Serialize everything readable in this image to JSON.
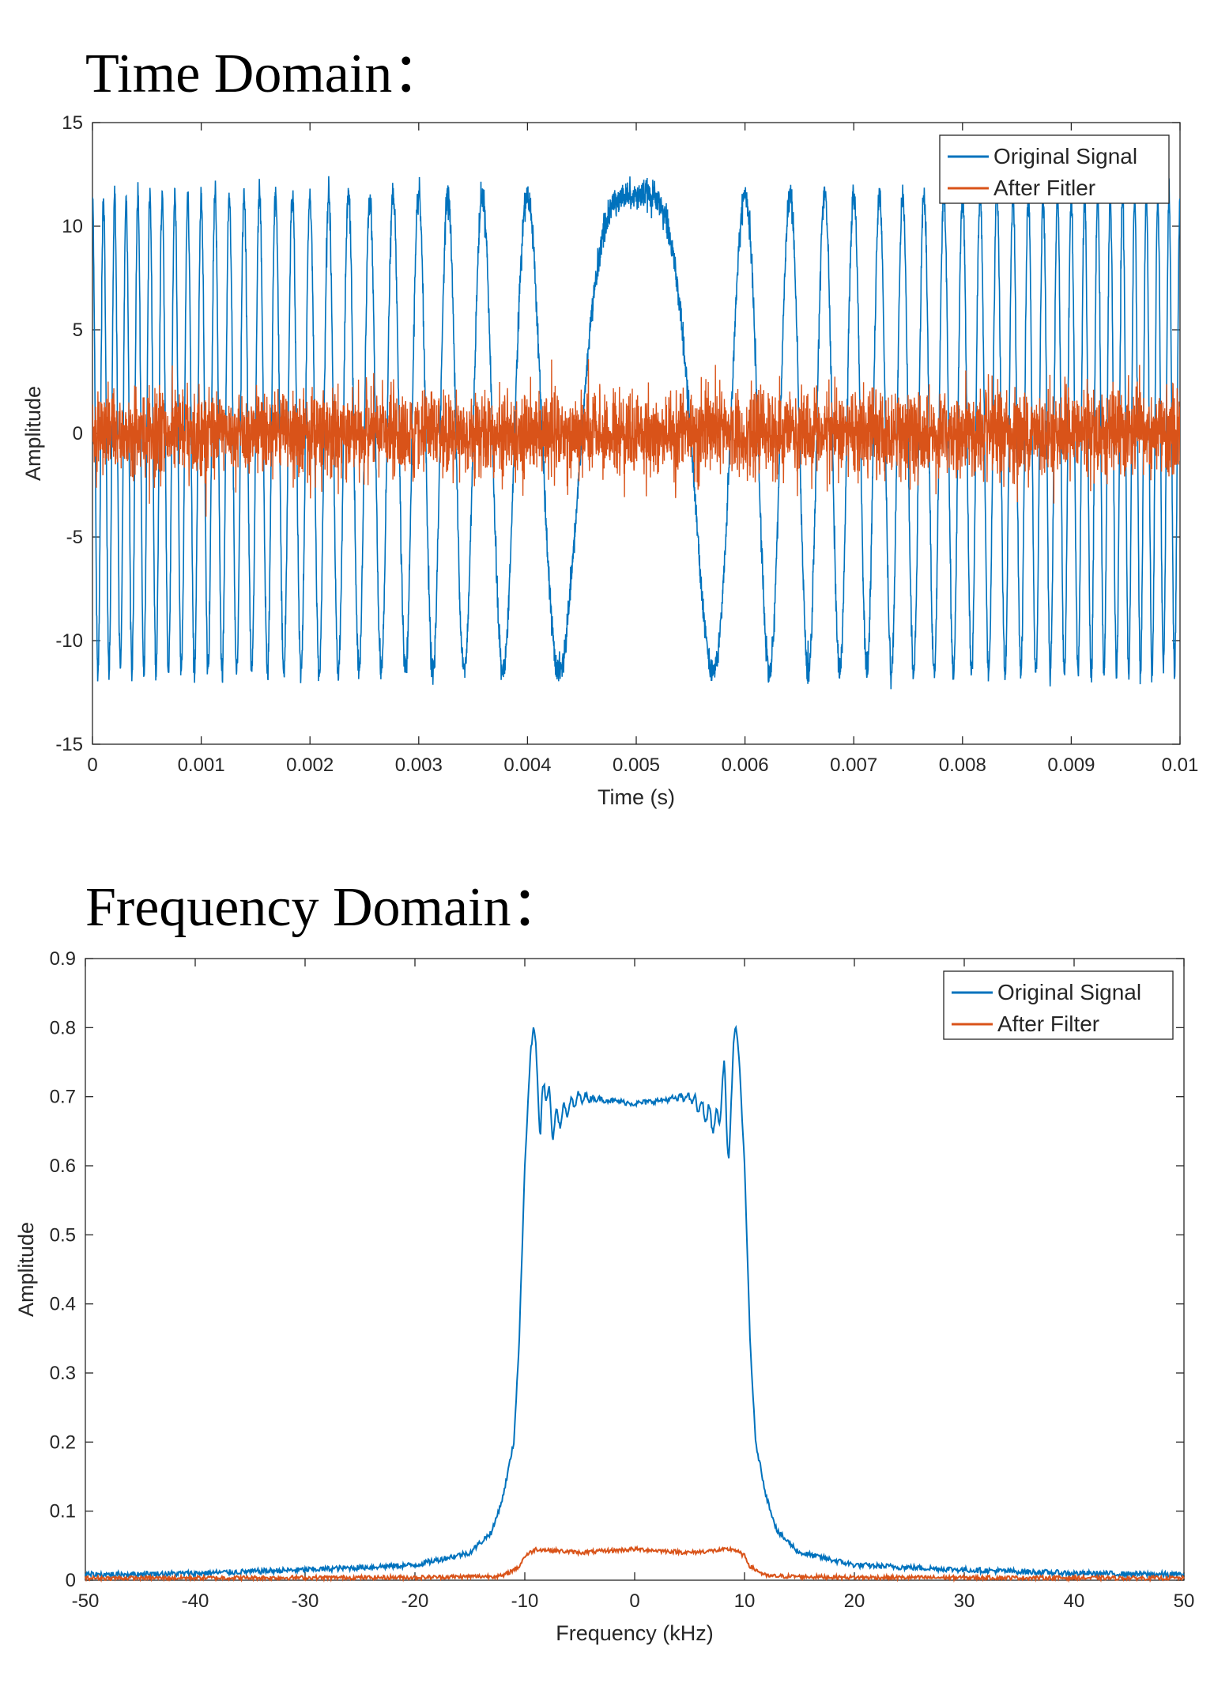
{
  "headings": {
    "time": "Time Domain：",
    "frequency": "Frequency Domain："
  },
  "colors": {
    "original": "#0072BD",
    "filtered": "#D95319",
    "axis": "#262626"
  },
  "chart_data": [
    {
      "type": "line",
      "title": "",
      "xlabel": "Time (s)",
      "ylabel": "Amplitude",
      "xlim": [
        0,
        0.01
      ],
      "ylim": [
        -15,
        15
      ],
      "xticks": [
        0,
        0.001,
        0.002,
        0.003,
        0.004,
        0.005,
        0.006,
        0.007,
        0.008,
        0.009,
        0.01
      ],
      "xticklabels": [
        "0",
        "0.001",
        "0.002",
        "0.003",
        "0.004",
        "0.005",
        "0.006",
        "0.007",
        "0.008",
        "0.009",
        "0.01"
      ],
      "yticks": [
        -15,
        -10,
        -5,
        0,
        5,
        10,
        15
      ],
      "yticklabels": [
        "-15",
        "-10",
        "-5",
        "0",
        "5",
        "10",
        "15"
      ],
      "grid": false,
      "legend_position": "top-right",
      "series": [
        {
          "name": "Original Signal",
          "color": "#0072BD",
          "description": "linear FM chirp, envelope about ±11.5, instantaneous frequency sweeping from about 10 kHz to 0 at t=0.005 s and back to 10 kHz, with noise",
          "amplitude": 11.5,
          "noise_std": 1.0,
          "t_center": 0.005,
          "freq_max_hz": 10000
        },
        {
          "name": "After Fitler",
          "color": "#D95319",
          "description": "filtered noise band centered at 0 with envelope about ±3",
          "noise_amplitude": 1.0
        }
      ]
    },
    {
      "type": "line",
      "title": "",
      "xlabel": "Frequency (kHz)",
      "ylabel": "Amplitude",
      "xlim": [
        -50,
        50
      ],
      "ylim": [
        0,
        0.9
      ],
      "xticks": [
        -50,
        -40,
        -30,
        -20,
        -10,
        0,
        10,
        20,
        30,
        40,
        50
      ],
      "xticklabels": [
        "-50",
        "-40",
        "-30",
        "-20",
        "-10",
        "0",
        "10",
        "20",
        "30",
        "40",
        "50"
      ],
      "yticks": [
        0,
        0.1,
        0.2,
        0.3,
        0.4,
        0.5,
        0.6,
        0.7,
        0.8,
        0.9
      ],
      "yticklabels": [
        "0",
        "0.1",
        "0.2",
        "0.3",
        "0.4",
        "0.5",
        "0.6",
        "0.7",
        "0.8",
        "0.9"
      ],
      "grid": false,
      "legend_position": "top-right",
      "series": [
        {
          "name": "Original Signal",
          "color": "#0072BD",
          "x": [
            -50,
            -40,
            -30,
            -20,
            -15,
            -13,
            -12,
            -11,
            -10.5,
            -10,
            -9.5,
            -9.2,
            -9,
            -8.6,
            -8.2,
            -7.5,
            -5,
            0,
            5,
            7.5,
            8.2,
            8.6,
            9,
            9.2,
            9.5,
            10,
            10.5,
            11,
            12,
            13,
            15,
            20,
            30,
            40,
            50
          ],
          "y": [
            0.008,
            0.01,
            0.015,
            0.022,
            0.04,
            0.07,
            0.12,
            0.2,
            0.35,
            0.6,
            0.76,
            0.8,
            0.78,
            0.63,
            0.73,
            0.66,
            0.7,
            0.69,
            0.7,
            0.66,
            0.73,
            0.61,
            0.78,
            0.8,
            0.76,
            0.6,
            0.35,
            0.2,
            0.12,
            0.07,
            0.04,
            0.022,
            0.015,
            0.01,
            0.008
          ]
        },
        {
          "name": "After Filter",
          "color": "#D95319",
          "x": [
            -50,
            -20,
            -12,
            -10.5,
            -10,
            -9,
            -5,
            0,
            5,
            9,
            10,
            10.5,
            12,
            20,
            50
          ],
          "y": [
            0.003,
            0.004,
            0.006,
            0.02,
            0.035,
            0.045,
            0.04,
            0.045,
            0.04,
            0.045,
            0.035,
            0.02,
            0.006,
            0.004,
            0.003
          ]
        }
      ]
    }
  ]
}
